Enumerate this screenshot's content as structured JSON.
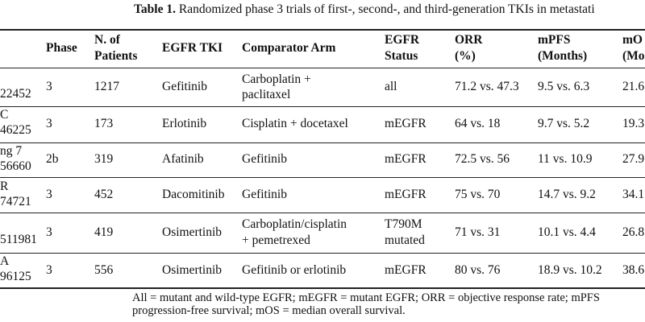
{
  "caption": {
    "label": "Table 1.",
    "text": "Randomized phase 3 trials of first-, second-, and third-generation TKIs in metastati"
  },
  "table": {
    "headers": {
      "study": "",
      "phase": "Phase",
      "n_line1": "N. of",
      "n_line2": "Patients",
      "tki": "EGFR TKI",
      "comparator": "Comparator Arm",
      "status_line1": "EGFR",
      "status_line2": "Status",
      "orr_line1": "ORR",
      "orr_line2": "(%)",
      "mpfs_line1": "mPFS",
      "mpfs_line2": "(Months)",
      "mos_line1": "mO",
      "mos_line2": "(Mo"
    },
    "rows": [
      {
        "study1": "",
        "study2": "22452",
        "phase": "3",
        "n": "1217",
        "tki": "Gefitinib",
        "comp1": "Carboplatin +",
        "comp2": "paclitaxel",
        "status1": "all",
        "status2": "",
        "orr": "71.2 vs. 47.3",
        "mpfs": "9.5 vs. 6.3",
        "mos": "21.6"
      },
      {
        "study1": "C",
        "study2": "46225",
        "phase": "3",
        "n": "173",
        "tki": "Erlotinib",
        "comp1": "Cisplatin + docetaxel",
        "comp2": "",
        "status1": "mEGFR",
        "status2": "",
        "orr": "64 vs. 18",
        "mpfs": "9.7 vs. 5.2",
        "mos": "19.3"
      },
      {
        "study1": "ng 7",
        "study2": "56660",
        "phase": "2b",
        "n": "319",
        "tki": "Afatinib",
        "comp1": "Gefitinib",
        "comp2": "",
        "status1": "mEGFR",
        "status2": "",
        "orr": "72.5 vs. 56",
        "mpfs": "11 vs. 10.9",
        "mos": "27.9"
      },
      {
        "study1": "R",
        "study2": "74721",
        "phase": "3",
        "n": "452",
        "tki": "Dacomitinib",
        "comp1": "Gefitinib",
        "comp2": "",
        "status1": "mEGFR",
        "status2": "",
        "orr": "75 vs. 70",
        "mpfs": "14.7 vs. 9.2",
        "mos": "34.1"
      },
      {
        "study1": "",
        "study2": "511981",
        "phase": "3",
        "n": "419",
        "tki": "Osimertinib",
        "comp1": "Carboplatin/cisplatin",
        "comp2": "+ pemetrexed",
        "status1": "T790M",
        "status2": "mutated",
        "orr": "71 vs. 31",
        "mpfs": "10.1 vs. 4.4",
        "mos": "26.8"
      },
      {
        "study1": "A",
        "study2": "96125",
        "phase": "3",
        "n": "556",
        "tki": "Osimertinib",
        "comp1": "Gefitinib or erlotinib",
        "comp2": "",
        "status1": "mEGFR",
        "status2": "",
        "orr": "80 vs. 76",
        "mpfs": "18.9 vs. 10.2",
        "mos": "38.6"
      }
    ]
  },
  "footnote": {
    "line1": "All = mutant and wild-type EGFR; mEGFR = mutant EGFR; ORR = objective response rate; mPFS",
    "line2": "progression-free survival; mOS = median overall survival."
  }
}
